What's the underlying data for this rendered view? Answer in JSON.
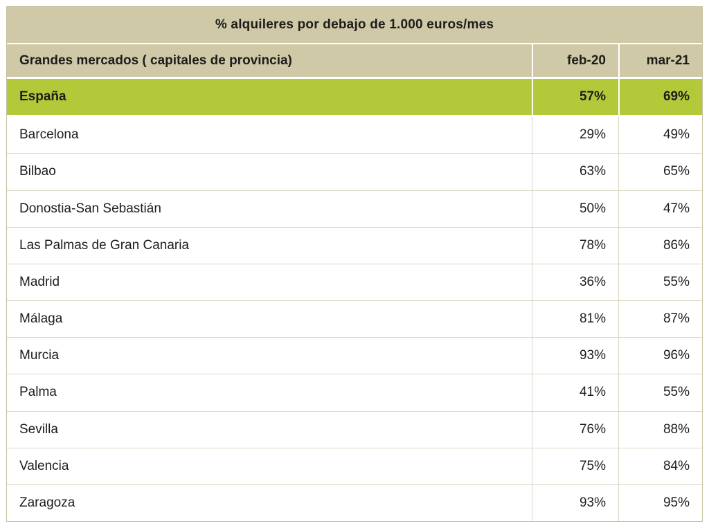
{
  "table": {
    "title": "% alquileres por debajo de 1.000 euros/mes",
    "header": {
      "market_label": "Grandes mercados ( capitales de provincia)",
      "col_feb": "feb-20",
      "col_mar": "mar-21"
    },
    "rows": [
      {
        "name": "España",
        "feb": "57%",
        "mar": "69%"
      },
      {
        "name": "Barcelona",
        "feb": "29%",
        "mar": "49%"
      },
      {
        "name": "Bilbao",
        "feb": "63%",
        "mar": "65%"
      },
      {
        "name": "Donostia-San Sebastián",
        "feb": "50%",
        "mar": "47%"
      },
      {
        "name": "Las Palmas de Gran Canaria",
        "feb": "78%",
        "mar": "86%"
      },
      {
        "name": "Madrid",
        "feb": "36%",
        "mar": "55%"
      },
      {
        "name": "Málaga",
        "feb": "81%",
        "mar": "87%"
      },
      {
        "name": "Murcia",
        "feb": "93%",
        "mar": "96%"
      },
      {
        "name": "Palma",
        "feb": "41%",
        "mar": "55%"
      },
      {
        "name": "Sevilla",
        "feb": "76%",
        "mar": "88%"
      },
      {
        "name": "Valencia",
        "feb": "75%",
        "mar": "84%"
      },
      {
        "name": "Zaragoza",
        "feb": "93%",
        "mar": "95%"
      }
    ]
  },
  "colors": {
    "header_bg": "#cfc9a8",
    "highlight_bg": "#b4c93a",
    "row_border": "#d9d5c2",
    "text": "#1d1d1b"
  },
  "chart_data": {
    "type": "table",
    "title": "% alquileres por debajo de 1.000 euros/mes",
    "columns": [
      "Grandes mercados ( capitales de provincia)",
      "feb-20",
      "mar-21"
    ],
    "units": "%",
    "rows": [
      [
        "España",
        57,
        69
      ],
      [
        "Barcelona",
        29,
        49
      ],
      [
        "Bilbao",
        63,
        65
      ],
      [
        "Donostia-San Sebastián",
        50,
        47
      ],
      [
        "Las Palmas de Gran Canaria",
        78,
        86
      ],
      [
        "Madrid",
        36,
        55
      ],
      [
        "Málaga",
        81,
        87
      ],
      [
        "Murcia",
        93,
        96
      ],
      [
        "Palma",
        41,
        55
      ],
      [
        "Sevilla",
        76,
        88
      ],
      [
        "Valencia",
        75,
        84
      ],
      [
        "Zaragoza",
        93,
        95
      ]
    ]
  }
}
